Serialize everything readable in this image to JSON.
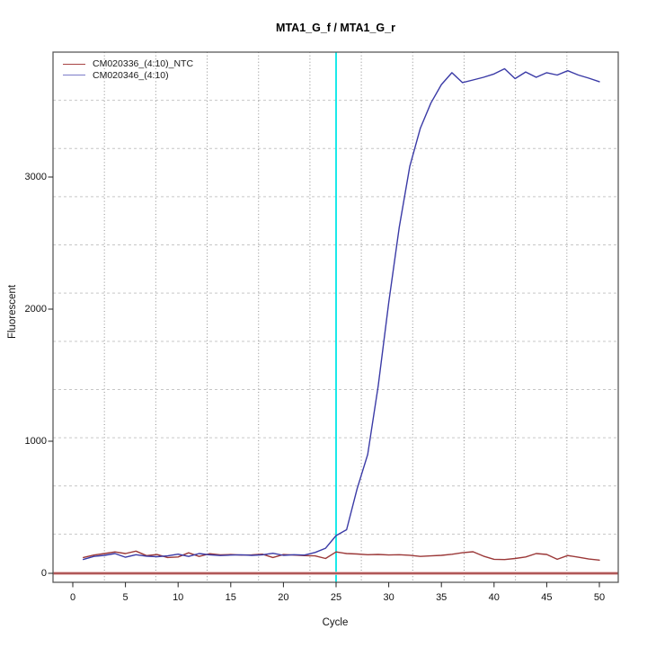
{
  "title": "MTA1_G_f / MTA1_G_r",
  "axes": {
    "x_label": "Cycle",
    "y_label": "Fluorescent",
    "x_ticks": [
      0,
      5,
      10,
      15,
      20,
      25,
      30,
      35,
      40,
      45,
      50
    ],
    "y_ticks": [
      0,
      1000,
      2000,
      3000
    ]
  },
  "legend": {
    "items": [
      {
        "label": "CM020336_(4:10)_NTC",
        "color": "#A84444"
      },
      {
        "label": "CM020346_(4:10)",
        "color": "#7B7BC8"
      }
    ]
  },
  "colors": {
    "ntc_curve": "#9B3838",
    "sample_curve": "#3A3AA6",
    "cycle_marker": "#00E8E8",
    "zero_line_core": "#A03C3C",
    "zero_line_halo": "#E0AEAE",
    "h_grid": "#C6C6C6",
    "v_grid": "#8C8C8C",
    "box_border": "#5A5A5A",
    "tick": "#222222"
  },
  "chart_data": {
    "type": "line",
    "title": "MTA1_G_f / MTA1_G_r",
    "xlabel": "Cycle",
    "ylabel": "Fluorescent",
    "xlim": [
      -0.9,
      52.1
    ],
    "ylim": [
      -85,
      3965
    ],
    "grid": "on",
    "legend_position": "top-left",
    "x_ticks": [
      0,
      5,
      10,
      15,
      20,
      25,
      30,
      35,
      40,
      45,
      50
    ],
    "y_ticks": [
      0,
      1000,
      2000,
      3000
    ],
    "x": [
      1,
      2,
      3,
      4,
      5,
      6,
      7,
      8,
      9,
      10,
      11,
      12,
      13,
      14,
      15,
      16,
      17,
      18,
      19,
      20,
      21,
      22,
      23,
      24,
      25,
      26,
      27,
      28,
      29,
      30,
      31,
      32,
      33,
      34,
      35,
      36,
      37,
      38,
      39,
      40,
      41,
      42,
      43,
      44,
      45,
      46,
      47,
      48,
      49,
      50
    ],
    "series": [
      {
        "name": "CM020336_(4:10)_NTC",
        "color": "#9B3838",
        "values": [
          120,
          138,
          150,
          162,
          150,
          168,
          134,
          142,
          120,
          124,
          155,
          128,
          148,
          140,
          142,
          138,
          140,
          145,
          120,
          142,
          138,
          134,
          132,
          112,
          162,
          150,
          146,
          141,
          143,
          139,
          141,
          137,
          128,
          132,
          136,
          144,
          156,
          163,
          130,
          106,
          104,
          112,
          124,
          150,
          143,
          106,
          135,
          122,
          108,
          100
        ]
      },
      {
        "name": "CM020346_(4:10)",
        "color": "#3A3AA6",
        "values": [
          105,
          128,
          136,
          150,
          122,
          141,
          130,
          126,
          132,
          145,
          128,
          150,
          140,
          135,
          138,
          140,
          136,
          140,
          152,
          136,
          141,
          138,
          158,
          190,
          286,
          330,
          640,
          900,
          1420,
          2050,
          2620,
          3080,
          3370,
          3560,
          3700,
          3790,
          3715,
          3735,
          3755,
          3780,
          3820,
          3745,
          3795,
          3755,
          3790,
          3772,
          3805,
          3772,
          3748,
          3722
        ]
      }
    ],
    "vline": {
      "x": 25,
      "color": "#00E8E8",
      "meaning": "cycle marker"
    },
    "hline": {
      "y": 0,
      "color": "#A03C3C",
      "meaning": "zero baseline"
    }
  }
}
